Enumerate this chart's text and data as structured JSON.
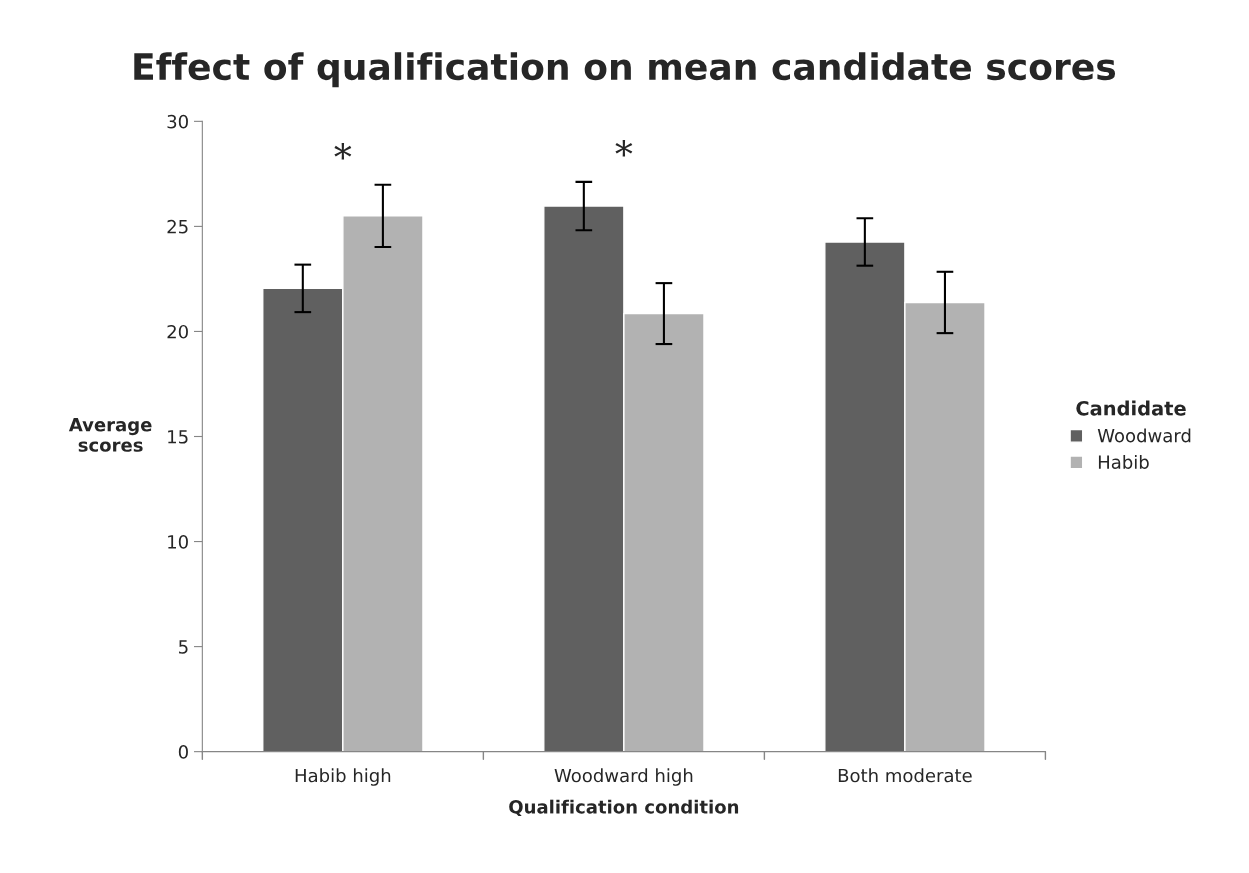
{
  "chart_data": {
    "type": "bar",
    "title": "Effect of qualification on mean candidate scores",
    "xlabel": "Qualification condition",
    "ylabel": "Average\nscores",
    "legend_title": "Candidate",
    "categories": [
      "Habib high",
      "Woodward high",
      "Both moderate"
    ],
    "series": [
      {
        "name": "Woodward",
        "color": "#606060",
        "values": [
          22.05,
          25.97,
          24.26
        ],
        "errors": [
          1.13,
          1.15,
          1.13
        ]
      },
      {
        "name": "Habib",
        "color": "#b2b2b2",
        "values": [
          25.5,
          20.85,
          21.38
        ],
        "errors": [
          1.48,
          1.45,
          1.46
        ]
      }
    ],
    "annotations": [
      "*",
      "*"
    ],
    "ylim": [
      0,
      30
    ],
    "yticks": [
      0,
      5,
      10,
      15,
      20,
      25,
      30
    ],
    "grid": false,
    "legend": "right"
  }
}
